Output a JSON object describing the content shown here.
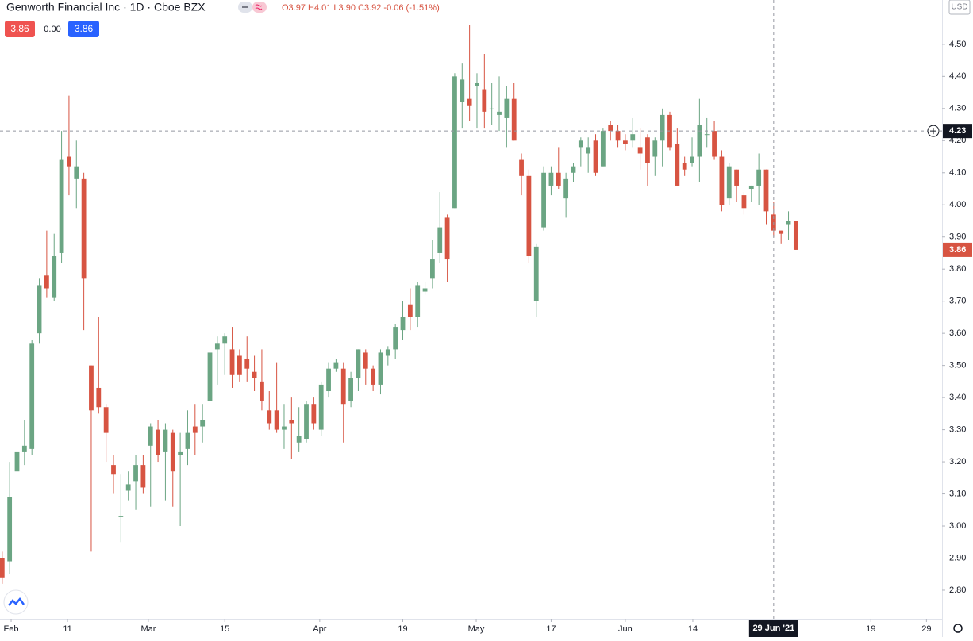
{
  "header": {
    "symbol": "Genworth Financial Inc · 1D · Cboe BZX",
    "ohlc": "O3.97 H4.01 L3.90 C3.92 -0.06 (-1.51%)",
    "badges": [
      "3.86",
      "0.00",
      "3.86"
    ]
  },
  "chart_data": {
    "type": "candlestick",
    "currency": "USD",
    "up_color": "#6ba583",
    "down_color": "#d75442",
    "grid": false,
    "xlim": [
      -0.3,
      126.7
    ],
    "ylim": [
      2.711,
      4.638
    ],
    "open": [
      2.9,
      2.89,
      3.17,
      3.23,
      3.24,
      3.6,
      3.78,
      3.71,
      3.85,
      4.15,
      4.08,
      4.08,
      3.5,
      3.43,
      3.37,
      3.19,
      3.03,
      3.11,
      3.14,
      3.19,
      3.25,
      3.3,
      3.23,
      3.29,
      3.22,
      3.24,
      3.31,
      3.31,
      3.39,
      3.55,
      3.57,
      3.55,
      3.53,
      3.52,
      3.48,
      3.45,
      3.36,
      3.36,
      3.3,
      3.33,
      3.26,
      3.27,
      3.38,
      3.3,
      3.42,
      3.49,
      3.49,
      3.39,
      3.46,
      3.54,
      3.49,
      3.44,
      3.53,
      3.55,
      3.61,
      3.69,
      3.65,
      3.73,
      3.77,
      3.85,
      3.96,
      3.99,
      4.32,
      4.33,
      4.37,
      4.36,
      4.3,
      4.28,
      4.27,
      4.33,
      4.14,
      4.09,
      3.7,
      3.93,
      4.06,
      4.1,
      4.02,
      4.1,
      4.18,
      4.16,
      4.2,
      4.12,
      4.25,
      4.23,
      4.2,
      4.2,
      4.18,
      4.21,
      4.15,
      4.2,
      4.28,
      4.19,
      4.13,
      4.13,
      4.15,
      4.22,
      4.23,
      4.15,
      4.02,
      4.11,
      4.03,
      4.05,
      4.06,
      4.11,
      3.97,
      3.92,
      3.94,
      3.95
    ],
    "high": [
      2.92,
      3.2,
      3.3,
      3.33,
      3.58,
      3.77,
      3.92,
      3.91,
      4.23,
      4.34,
      4.2,
      4.1,
      3.5,
      3.65,
      3.38,
      3.22,
      3.16,
      3.17,
      3.22,
      3.22,
      3.32,
      3.33,
      3.32,
      3.3,
      3.29,
      3.36,
      3.38,
      3.38,
      3.57,
      3.59,
      3.6,
      3.62,
      3.55,
      3.59,
      3.53,
      3.55,
      3.42,
      3.51,
      3.38,
      3.4,
      3.37,
      3.39,
      3.4,
      3.45,
      3.51,
      3.52,
      3.51,
      3.48,
      3.55,
      3.55,
      3.5,
      3.55,
      3.56,
      3.63,
      3.7,
      3.74,
      3.76,
      3.76,
      3.89,
      4.04,
      3.97,
      4.41,
      4.44,
      4.56,
      4.41,
      4.47,
      4.38,
      4.4,
      4.37,
      4.38,
      4.16,
      4.11,
      3.88,
      4.12,
      4.12,
      4.18,
      4.1,
      4.13,
      4.21,
      4.21,
      4.22,
      4.24,
      4.26,
      4.25,
      4.22,
      4.27,
      4.24,
      4.22,
      4.21,
      4.3,
      4.29,
      4.24,
      4.15,
      4.21,
      4.33,
      4.27,
      4.26,
      4.17,
      4.13,
      4.11,
      4.04,
      4.06,
      4.16,
      4.11,
      4.01,
      3.92,
      3.98,
      3.95
    ],
    "low": [
      2.82,
      2.85,
      3.14,
      3.19,
      3.22,
      3.57,
      3.71,
      3.7,
      3.82,
      4.03,
      3.99,
      3.61,
      2.92,
      3.35,
      3.2,
      3.1,
      2.95,
      3.08,
      3.05,
      3.1,
      3.06,
      3.2,
      3.08,
      3.06,
      3.0,
      3.19,
      3.22,
      3.26,
      3.37,
      3.44,
      3.47,
      3.43,
      3.45,
      3.45,
      3.42,
      3.36,
      3.3,
      3.29,
      3.24,
      3.21,
      3.23,
      3.26,
      3.3,
      3.28,
      3.4,
      3.48,
      3.26,
      3.37,
      3.42,
      3.44,
      3.42,
      3.41,
      3.5,
      3.52,
      3.58,
      3.61,
      3.62,
      3.72,
      3.74,
      3.82,
      3.76,
      3.99,
      4.24,
      4.26,
      4.24,
      4.24,
      4.25,
      4.23,
      4.18,
      4.2,
      4.03,
      3.82,
      3.65,
      3.92,
      4.03,
      4.05,
      3.96,
      4.07,
      4.12,
      4.1,
      4.09,
      4.12,
      4.2,
      4.18,
      4.17,
      4.18,
      4.11,
      4.06,
      4.09,
      4.12,
      4.17,
      4.06,
      4.09,
      4.12,
      4.07,
      4.18,
      4.14,
      3.98,
      4.0,
      4.01,
      3.97,
      4.01,
      4.0,
      3.94,
      3.9,
      3.88,
      3.89,
      3.86
    ],
    "close": [
      2.84,
      3.09,
      3.23,
      3.25,
      3.57,
      3.75,
      3.74,
      3.84,
      4.14,
      4.12,
      4.12,
      3.77,
      3.36,
      3.37,
      3.29,
      3.16,
      3.03,
      3.13,
      3.19,
      3.12,
      3.31,
      3.22,
      3.3,
      3.17,
      3.23,
      3.29,
      3.29,
      3.33,
      3.54,
      3.57,
      3.59,
      3.47,
      3.47,
      3.49,
      3.46,
      3.39,
      3.32,
      3.3,
      3.31,
      3.32,
      3.28,
      3.38,
      3.32,
      3.44,
      3.49,
      3.51,
      3.38,
      3.46,
      3.55,
      3.49,
      3.44,
      3.54,
      3.55,
      3.62,
      3.65,
      3.65,
      3.75,
      3.74,
      3.83,
      3.93,
      3.83,
      4.4,
      4.39,
      4.31,
      4.38,
      4.29,
      4.3,
      4.29,
      4.33,
      4.2,
      4.09,
      3.84,
      3.87,
      4.1,
      4.1,
      4.06,
      4.08,
      4.12,
      4.2,
      4.18,
      4.1,
      4.23,
      4.23,
      4.2,
      4.19,
      4.22,
      4.16,
      4.13,
      4.2,
      4.28,
      4.18,
      4.06,
      4.11,
      4.15,
      4.25,
      4.22,
      4.15,
      4.0,
      4.12,
      4.06,
      3.99,
      4.06,
      4.11,
      3.98,
      3.92,
      3.91,
      3.95,
      3.86
    ],
    "yticks": [
      {
        "value": 2.8,
        "label": "2.80"
      },
      {
        "value": 2.9,
        "label": "2.90"
      },
      {
        "value": 3.0,
        "label": "3.00"
      },
      {
        "value": 3.1,
        "label": "3.10"
      },
      {
        "value": 3.2,
        "label": "3.20"
      },
      {
        "value": 3.3,
        "label": "3.30"
      },
      {
        "value": 3.4,
        "label": "3.40"
      },
      {
        "value": 3.5,
        "label": "3.50"
      },
      {
        "value": 3.6,
        "label": "3.60"
      },
      {
        "value": 3.7,
        "label": "3.70"
      },
      {
        "value": 3.8,
        "label": "3.80"
      },
      {
        "value": 3.9,
        "label": "3.90"
      },
      {
        "value": 4.0,
        "label": "4.00"
      },
      {
        "value": 4.1,
        "label": "4.10"
      },
      {
        "value": 4.2,
        "label": "4.20"
      },
      {
        "value": 4.3,
        "label": "4.30"
      },
      {
        "value": 4.4,
        "label": "4.40"
      },
      {
        "value": 4.5,
        "label": "4.50"
      }
    ],
    "xticks": [
      {
        "value": 1.2,
        "label": "Feb"
      },
      {
        "value": 8.8,
        "label": "11"
      },
      {
        "value": 19.7,
        "label": "Mar"
      },
      {
        "value": 30,
        "label": "15"
      },
      {
        "value": 42.8,
        "label": "Apr"
      },
      {
        "value": 54,
        "label": "19"
      },
      {
        "value": 63.9,
        "label": "May"
      },
      {
        "value": 74,
        "label": "17"
      },
      {
        "value": 84,
        "label": "Jun"
      },
      {
        "value": 93.1,
        "label": "14"
      },
      {
        "value": 117.1,
        "label": "19"
      },
      {
        "value": 124.6,
        "label": "29"
      }
    ],
    "crosshair": {
      "x": 104,
      "date_label": "29 Jun '21",
      "price": 4.23
    },
    "last_price": 3.86
  }
}
